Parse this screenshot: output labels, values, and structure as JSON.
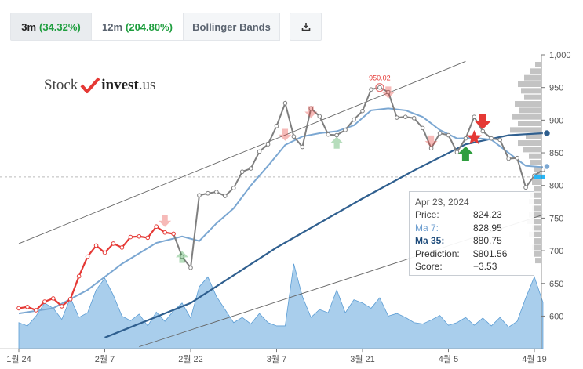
{
  "tabs": {
    "t3m_label": "3m",
    "t3m_change": "(34.32%)",
    "t12m_label": "12m",
    "t12m_change": "(204.80%)",
    "bb_label": "Bollinger Bands",
    "download_icon": "download-icon"
  },
  "logo": {
    "part1": "Stock",
    "part2": "invest",
    "part3": ".us"
  },
  "colors": {
    "price_up": "#e53935",
    "price": "#7f7f7f",
    "ma7": "#7ba7d2",
    "ma35": "#2f5f8f",
    "volume": "#8cbde6",
    "arrow_up": "#2e9e3e",
    "arrow_down": "#e53935"
  },
  "chart_data": {
    "type": "line",
    "y_ticks": [
      "1,000",
      "950",
      "900",
      "850",
      "800",
      "750",
      "700",
      "650",
      "600"
    ],
    "x_ticks": [
      "1월 24",
      "2월 7",
      "2월 22",
      "3월 7",
      "3월 21",
      "4월 5",
      "4월 19"
    ],
    "ylim": [
      550,
      1000
    ],
    "price_series": [
      {
        "d": 0,
        "v": 612
      },
      {
        "d": 1,
        "v": 614
      },
      {
        "d": 2,
        "v": 609
      },
      {
        "d": 3,
        "v": 622
      },
      {
        "d": 4,
        "v": 627
      },
      {
        "d": 5,
        "v": 615
      },
      {
        "d": 6,
        "v": 626
      },
      {
        "d": 7,
        "v": 661
      },
      {
        "d": 8,
        "v": 691
      },
      {
        "d": 9,
        "v": 708
      },
      {
        "d": 10,
        "v": 697
      },
      {
        "d": 11,
        "v": 711
      },
      {
        "d": 12,
        "v": 705
      },
      {
        "d": 13,
        "v": 721
      },
      {
        "d": 14,
        "v": 722
      },
      {
        "d": 15,
        "v": 720
      },
      {
        "d": 16,
        "v": 737
      },
      {
        "d": 17,
        "v": 728
      },
      {
        "d": 18,
        "v": 726
      },
      {
        "d": 19,
        "v": 691
      },
      {
        "d": 20,
        "v": 674
      },
      {
        "d": 21,
        "v": 785
      },
      {
        "d": 22,
        "v": 788
      },
      {
        "d": 23,
        "v": 790
      },
      {
        "d": 24,
        "v": 784
      },
      {
        "d": 25,
        "v": 796
      },
      {
        "d": 26,
        "v": 821
      },
      {
        "d": 27,
        "v": 826
      },
      {
        "d": 28,
        "v": 852
      },
      {
        "d": 29,
        "v": 863
      },
      {
        "d": 30,
        "v": 891
      },
      {
        "d": 31,
        "v": 926
      },
      {
        "d": 32,
        "v": 875
      },
      {
        "d": 33,
        "v": 859
      },
      {
        "d": 34,
        "v": 918
      },
      {
        "d": 35,
        "v": 906
      },
      {
        "d": 36,
        "v": 878
      },
      {
        "d": 37,
        "v": 877
      },
      {
        "d": 38,
        "v": 885
      },
      {
        "d": 39,
        "v": 901
      },
      {
        "d": 40,
        "v": 914
      },
      {
        "d": 41,
        "v": 947
      },
      {
        "d": 42,
        "v": 950
      },
      {
        "d": 43,
        "v": 943
      },
      {
        "d": 44,
        "v": 904
      },
      {
        "d": 45,
        "v": 905
      },
      {
        "d": 46,
        "v": 903
      },
      {
        "d": 47,
        "v": 888
      },
      {
        "d": 48,
        "v": 857
      },
      {
        "d": 49,
        "v": 880
      },
      {
        "d": 50,
        "v": 877
      },
      {
        "d": 51,
        "v": 851
      },
      {
        "d": 52,
        "v": 872
      },
      {
        "d": 53,
        "v": 905
      },
      {
        "d": 54,
        "v": 883
      },
      {
        "d": 55,
        "v": 872
      },
      {
        "d": 56,
        "v": 870
      },
      {
        "d": 57,
        "v": 841
      },
      {
        "d": 58,
        "v": 842
      },
      {
        "d": 59,
        "v": 797
      },
      {
        "d": 60,
        "v": 815
      },
      {
        "d": 61,
        "v": 824
      }
    ],
    "red_until": 18,
    "ma7": [
      [
        0,
        604
      ],
      [
        4,
        612
      ],
      [
        8,
        640
      ],
      [
        12,
        680
      ],
      [
        16,
        712
      ],
      [
        19,
        722
      ],
      [
        21,
        715
      ],
      [
        23,
        742
      ],
      [
        25,
        765
      ],
      [
        27,
        800
      ],
      [
        29,
        830
      ],
      [
        31,
        862
      ],
      [
        33,
        875
      ],
      [
        35,
        880
      ],
      [
        37,
        883
      ],
      [
        39,
        892
      ],
      [
        41,
        915
      ],
      [
        43,
        918
      ],
      [
        45,
        915
      ],
      [
        47,
        905
      ],
      [
        49,
        885
      ],
      [
        51,
        872
      ],
      [
        53,
        873
      ],
      [
        55,
        870
      ],
      [
        57,
        850
      ],
      [
        59,
        830
      ],
      [
        61,
        828
      ]
    ],
    "ma35": [
      [
        10,
        567
      ],
      [
        20,
        620
      ],
      [
        30,
        705
      ],
      [
        40,
        780
      ],
      [
        46,
        823
      ],
      [
        52,
        863
      ],
      [
        57,
        877
      ],
      [
        61,
        880
      ]
    ],
    "volume": [
      [
        0,
        590
      ],
      [
        1,
        585
      ],
      [
        2,
        600
      ],
      [
        3,
        620
      ],
      [
        4,
        612
      ],
      [
        5,
        595
      ],
      [
        6,
        628
      ],
      [
        7,
        598
      ],
      [
        8,
        605
      ],
      [
        9,
        640
      ],
      [
        10,
        658
      ],
      [
        11,
        632
      ],
      [
        12,
        600
      ],
      [
        13,
        593
      ],
      [
        14,
        603
      ],
      [
        15,
        585
      ],
      [
        16,
        606
      ],
      [
        17,
        592
      ],
      [
        18,
        608
      ],
      [
        19,
        620
      ],
      [
        20,
        597
      ],
      [
        21,
        645
      ],
      [
        22,
        660
      ],
      [
        23,
        630
      ],
      [
        24,
        610
      ],
      [
        25,
        590
      ],
      [
        26,
        598
      ],
      [
        27,
        588
      ],
      [
        28,
        604
      ],
      [
        29,
        590
      ],
      [
        30,
        585
      ],
      [
        31,
        585
      ],
      [
        32,
        680
      ],
      [
        33,
        630
      ],
      [
        34,
        598
      ],
      [
        35,
        610
      ],
      [
        36,
        605
      ],
      [
        37,
        640
      ],
      [
        38,
        605
      ],
      [
        39,
        625
      ],
      [
        40,
        620
      ],
      [
        41,
        612
      ],
      [
        42,
        628
      ],
      [
        43,
        600
      ],
      [
        44,
        604
      ],
      [
        45,
        598
      ],
      [
        46,
        590
      ],
      [
        47,
        588
      ],
      [
        48,
        594
      ],
      [
        49,
        601
      ],
      [
        50,
        586
      ],
      [
        51,
        590
      ],
      [
        52,
        598
      ],
      [
        53,
        586
      ],
      [
        54,
        597
      ],
      [
        55,
        585
      ],
      [
        56,
        598
      ],
      [
        57,
        583
      ],
      [
        58,
        592
      ],
      [
        59,
        628
      ],
      [
        60,
        660
      ],
      [
        61,
        621
      ]
    ],
    "annotation_peak": "950.02",
    "tooltip": {
      "date": "Apr 23, 2024",
      "price_label": "Price:",
      "price": "824.23",
      "ma7_label": "Ma 7:",
      "ma7": "828.95",
      "ma35_label": "Ma 35:",
      "ma35": "880.75",
      "pred_label": "Prediction:",
      "pred": "$801.56",
      "score_label": "Score:",
      "score": "−3.53"
    }
  }
}
